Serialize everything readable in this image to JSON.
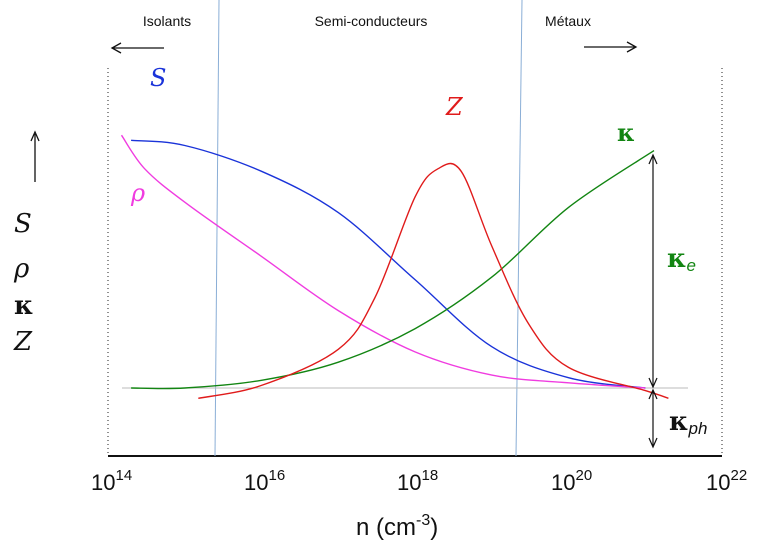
{
  "regions": [
    {
      "label": "Isolants",
      "arrow": "left"
    },
    {
      "label": "Semi-conducteurs",
      "arrow": "none"
    },
    {
      "label": "Métaux",
      "arrow": "right"
    }
  ],
  "y_symbols": [
    "S",
    "ρ",
    "κ",
    "Z"
  ],
  "x_axis": {
    "label_main": "n (cm",
    "label_exp": "-3",
    "label_close": ")",
    "ticks": [
      {
        "base": "10",
        "exp": "14"
      },
      {
        "base": "10",
        "exp": "16"
      },
      {
        "base": "10",
        "exp": "18"
      },
      {
        "base": "10",
        "exp": "20"
      },
      {
        "base": "10",
        "exp": "22"
      }
    ]
  },
  "kappa_parts": {
    "electronic": "κ",
    "electronic_sub": "e",
    "phonon": "κ",
    "phonon_sub": "ph"
  },
  "chart_data": {
    "type": "line",
    "xscale": "log",
    "xlim": [
      100000000000000.0,
      1e+22
    ],
    "y_units": "arbitrary (qualitative)",
    "region_boundaries": [
      1500000000000000.0,
      1.5e+19
    ],
    "series": [
      {
        "name": "S",
        "color": "#1a33d9",
        "x": [
          200000000000000.0,
          1000000000000000.0,
          1e+16,
          1e+17,
          1e+18,
          1e+19,
          1e+20,
          1e+21
        ],
        "y": [
          0.96,
          0.94,
          0.84,
          0.68,
          0.42,
          0.16,
          0.04,
          0.0
        ]
      },
      {
        "name": "ρ",
        "color": "#f03ce0",
        "x": [
          150000000000000.0,
          300000000000000.0,
          1000000000000000.0,
          1e+16,
          1e+17,
          1e+18,
          1e+19,
          1e+20,
          1e+21
        ],
        "y": [
          0.98,
          0.85,
          0.72,
          0.51,
          0.3,
          0.14,
          0.05,
          0.02,
          0.0
        ]
      },
      {
        "name": "κ",
        "color": "#128512",
        "x": [
          200000000000000.0,
          1000000000000000.0,
          1e+16,
          1e+17,
          1e+18,
          1e+19,
          1e+20,
          1.3e+21
        ],
        "y": [
          0.0,
          0.0,
          0.03,
          0.1,
          0.23,
          0.43,
          0.7,
          0.92
        ]
      },
      {
        "name": "Z",
        "color": "#e01b1b",
        "x": [
          1500000000000000.0,
          1e+16,
          1e+17,
          3e+17,
          1e+18,
          2e+18,
          4e+18,
          1e+19,
          3e+19,
          1e+20,
          1e+21,
          2e+21
        ],
        "y": [
          -0.04,
          0.01,
          0.15,
          0.35,
          0.74,
          0.85,
          0.84,
          0.55,
          0.25,
          0.08,
          -0.01,
          -0.04
        ]
      }
    ]
  }
}
